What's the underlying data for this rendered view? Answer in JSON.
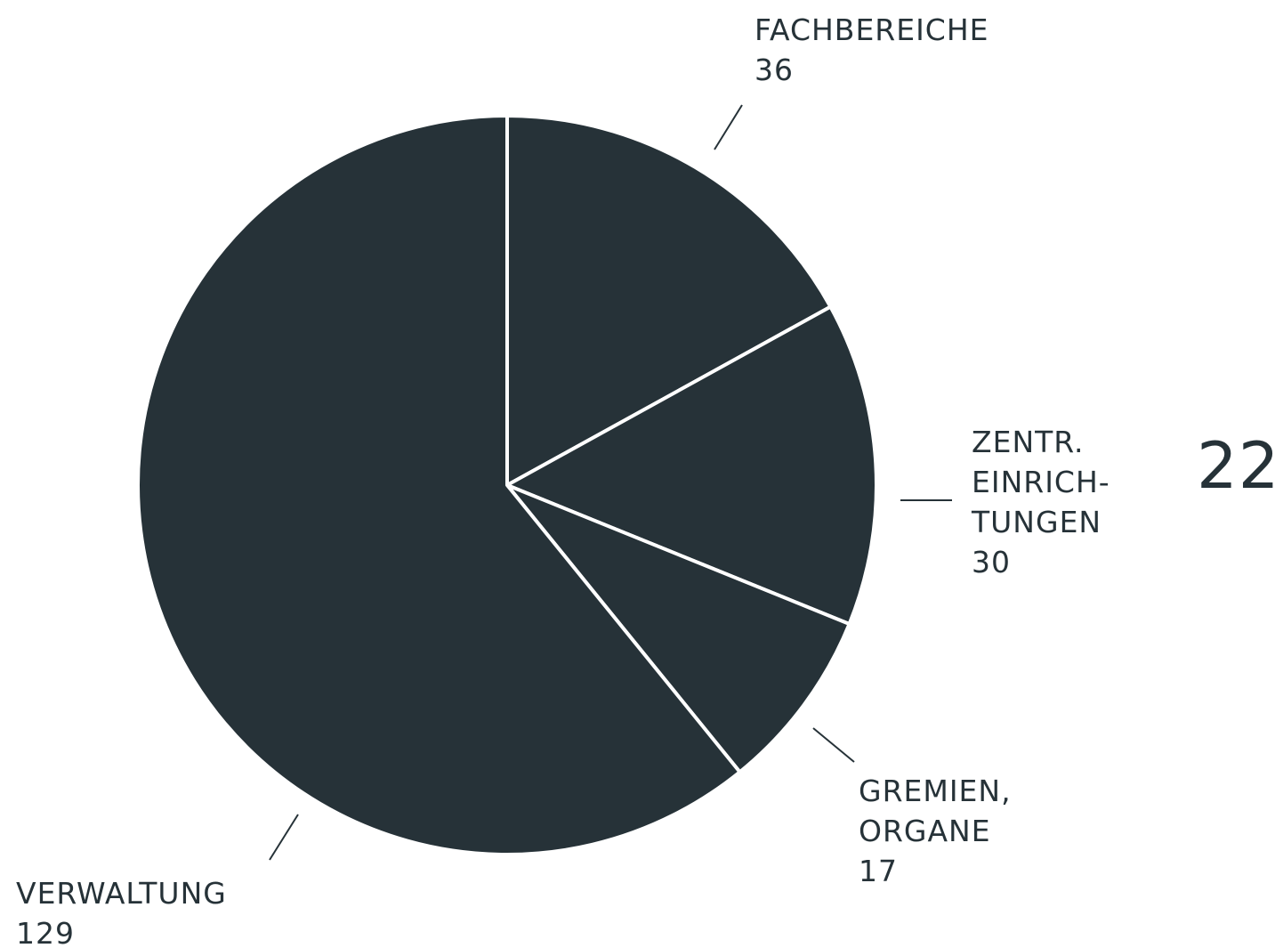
{
  "chart_data": {
    "type": "pie",
    "color": "#263238",
    "categories": [
      [
        "FACHBEREICHE"
      ],
      [
        "ZENTR.",
        "EINRICH-",
        "TUNGEN"
      ],
      [
        "GREMIEN,",
        "ORGANE"
      ],
      [
        "VERWALTUNG"
      ]
    ],
    "values": [
      36,
      30,
      17,
      129
    ],
    "annotation": "22"
  }
}
